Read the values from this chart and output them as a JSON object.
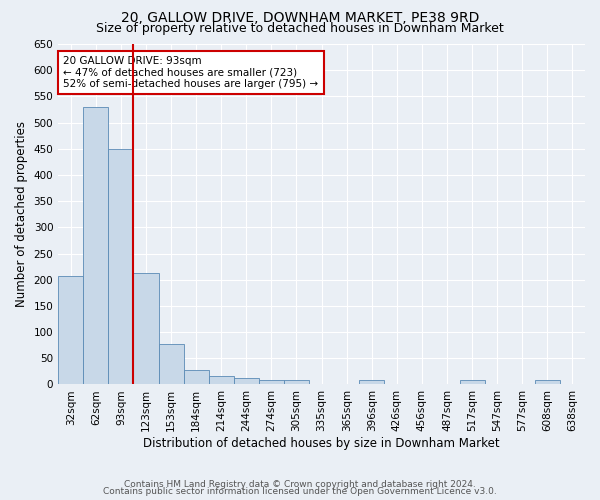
{
  "title": "20, GALLOW DRIVE, DOWNHAM MARKET, PE38 9RD",
  "subtitle": "Size of property relative to detached houses in Downham Market",
  "xlabel": "Distribution of detached houses by size in Downham Market",
  "ylabel": "Number of detached properties",
  "footer_line1": "Contains HM Land Registry data © Crown copyright and database right 2024.",
  "footer_line2": "Contains public sector information licensed under the Open Government Licence v3.0.",
  "categories": [
    "32sqm",
    "62sqm",
    "93sqm",
    "123sqm",
    "153sqm",
    "184sqm",
    "214sqm",
    "244sqm",
    "274sqm",
    "305sqm",
    "335sqm",
    "365sqm",
    "396sqm",
    "426sqm",
    "456sqm",
    "487sqm",
    "517sqm",
    "547sqm",
    "577sqm",
    "608sqm",
    "638sqm"
  ],
  "bar_values": [
    207,
    530,
    450,
    212,
    78,
    27,
    16,
    12,
    8,
    8,
    0,
    0,
    8,
    0,
    0,
    0,
    8,
    0,
    0,
    8,
    0
  ],
  "bar_color": "#c8d8e8",
  "bar_edge_color": "#5a8ab5",
  "annotation_text": "20 GALLOW DRIVE: 93sqm\n← 47% of detached houses are smaller (723)\n52% of semi-detached houses are larger (795) →",
  "annotation_box_color": "#ffffff",
  "annotation_box_edge_color": "#cc0000",
  "red_line_color": "#cc0000",
  "ylim": [
    0,
    650
  ],
  "yticks": [
    0,
    50,
    100,
    150,
    200,
    250,
    300,
    350,
    400,
    450,
    500,
    550,
    600,
    650
  ],
  "bg_color": "#eaeff5",
  "plot_bg_color": "#eaeff5",
  "grid_color": "#ffffff",
  "title_fontsize": 10,
  "subtitle_fontsize": 9,
  "label_fontsize": 8.5,
  "tick_fontsize": 7.5,
  "footer_fontsize": 6.5
}
